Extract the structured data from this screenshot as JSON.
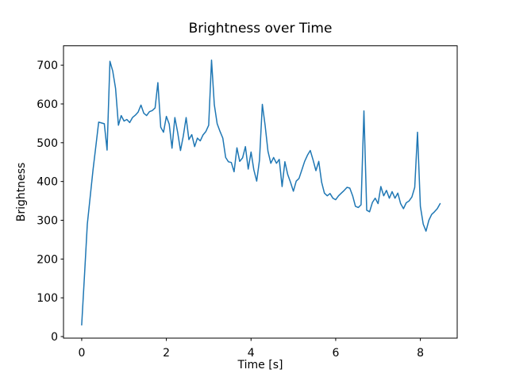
{
  "chart_data": {
    "type": "line",
    "title": "Brightness over Time",
    "xlabel": "Time [s]",
    "ylabel": "Brightness",
    "xlim": [
      -0.43,
      8.87
    ],
    "ylim": [
      -4,
      750
    ],
    "grid": false,
    "legend": null,
    "line_color": "#1f77b4",
    "background_color": "#ffffff",
    "xticks": [
      0,
      2,
      4,
      6,
      8
    ],
    "yticks": [
      0,
      100,
      200,
      300,
      400,
      500,
      600,
      700
    ],
    "x": [
      0.0,
      0.067,
      0.133,
      0.2,
      0.267,
      0.333,
      0.4,
      0.467,
      0.533,
      0.6,
      0.667,
      0.733,
      0.8,
      0.867,
      0.933,
      1.0,
      1.067,
      1.133,
      1.2,
      1.267,
      1.333,
      1.4,
      1.467,
      1.533,
      1.6,
      1.667,
      1.733,
      1.8,
      1.867,
      1.933,
      2.0,
      2.067,
      2.133,
      2.2,
      2.267,
      2.333,
      2.4,
      2.467,
      2.533,
      2.6,
      2.667,
      2.733,
      2.8,
      2.867,
      2.933,
      3.0,
      3.067,
      3.133,
      3.2,
      3.267,
      3.333,
      3.4,
      3.467,
      3.533,
      3.6,
      3.667,
      3.733,
      3.8,
      3.867,
      3.933,
      4.0,
      4.067,
      4.133,
      4.2,
      4.267,
      4.333,
      4.4,
      4.467,
      4.533,
      4.6,
      4.667,
      4.733,
      4.8,
      4.867,
      4.933,
      5.0,
      5.067,
      5.133,
      5.2,
      5.267,
      5.333,
      5.4,
      5.467,
      5.533,
      5.6,
      5.667,
      5.733,
      5.8,
      5.867,
      5.933,
      6.0,
      6.067,
      6.133,
      6.2,
      6.267,
      6.333,
      6.4,
      6.467,
      6.533,
      6.6,
      6.667,
      6.733,
      6.8,
      6.867,
      6.933,
      7.0,
      7.067,
      7.133,
      7.2,
      7.267,
      7.333,
      7.4,
      7.467,
      7.533,
      7.6,
      7.667,
      7.733,
      7.8,
      7.867,
      7.933,
      8.0,
      8.067,
      8.133,
      8.2,
      8.267,
      8.333,
      8.4,
      8.467
    ],
    "values": [
      30,
      160,
      290,
      360,
      430,
      490,
      553,
      551,
      549,
      481,
      710,
      685,
      640,
      545,
      570,
      556,
      560,
      552,
      565,
      571,
      579,
      597,
      576,
      570,
      580,
      583,
      590,
      655,
      540,
      527,
      568,
      548,
      486,
      565,
      527,
      480,
      517,
      565,
      508,
      521,
      490,
      512,
      505,
      520,
      529,
      545,
      713,
      598,
      549,
      529,
      512,
      462,
      451,
      449,
      425,
      487,
      452,
      461,
      490,
      432,
      476,
      430,
      401,
      455,
      599,
      545,
      478,
      447,
      462,
      447,
      457,
      387,
      451,
      418,
      398,
      375,
      401,
      408,
      430,
      452,
      468,
      480,
      455,
      428,
      452,
      398,
      370,
      363,
      369,
      357,
      353,
      363,
      370,
      377,
      385,
      383,
      363,
      336,
      333,
      340,
      582,
      326,
      322,
      346,
      357,
      343,
      387,
      363,
      377,
      357,
      374,
      357,
      370,
      343,
      330,
      345,
      350,
      360,
      385,
      527,
      336,
      290,
      272,
      300,
      315,
      322,
      330,
      343
    ]
  }
}
